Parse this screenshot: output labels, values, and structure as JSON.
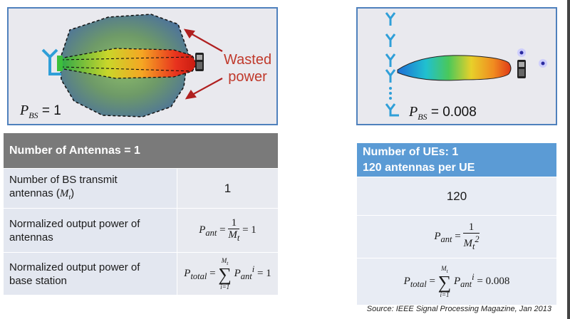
{
  "left": {
    "callout": {
      "line1": "Wasted",
      "line2": "power"
    },
    "pbs": {
      "symbol": "P",
      "sub": "BS",
      "value": "= 1"
    },
    "table": {
      "header": "Number of Antennas = 1",
      "rows": [
        {
          "label1": "Number of BS transmit",
          "label2": "antennas (",
          "label_sym": "M",
          "label_sub": "t",
          "label_end": ")",
          "value": "1"
        },
        {
          "label1": "Normalized output power of",
          "label2": "antennas",
          "formula": "P_ant = 1/M_t = 1"
        },
        {
          "label1": "Normalized output power of",
          "label2": "base station",
          "formula": "P_total = Σ_{i=1}^{M_t} P_ant^i = 1"
        }
      ]
    }
  },
  "right": {
    "pbs": {
      "symbol": "P",
      "sub": "BS",
      "value": "= 0.008"
    },
    "table": {
      "header1": "Number of UEs: 1",
      "header2": "120 antennas per UE",
      "rows": [
        {
          "value": "120"
        },
        {
          "formula": "P_ant = 1/M_t^2"
        },
        {
          "formula": "P_total = Σ_{i=1}^{M_t} P_ant^i = 0.008"
        }
      ]
    }
  },
  "math": {
    "P": "P",
    "ant": "ant",
    "total": "total",
    "M": "M",
    "t": "t",
    "i": "i",
    "one": "1",
    "eq_one": "= 1",
    "eq": "=",
    "eq_0008": "= 0.008",
    "sigma": "∑",
    "i_eq_1": "i=1",
    "two": "2"
  },
  "source": "Source: IEEE Signal Processing Magazine, Jan 2013",
  "colors": {
    "panel_border": "#4f81bd",
    "panel_bg": "#e9e9ee",
    "callout": "#c0392b",
    "antenna": "#2f9fd8",
    "header_gray": "#7a7a7a",
    "header_blue": "#5b9bd5"
  }
}
